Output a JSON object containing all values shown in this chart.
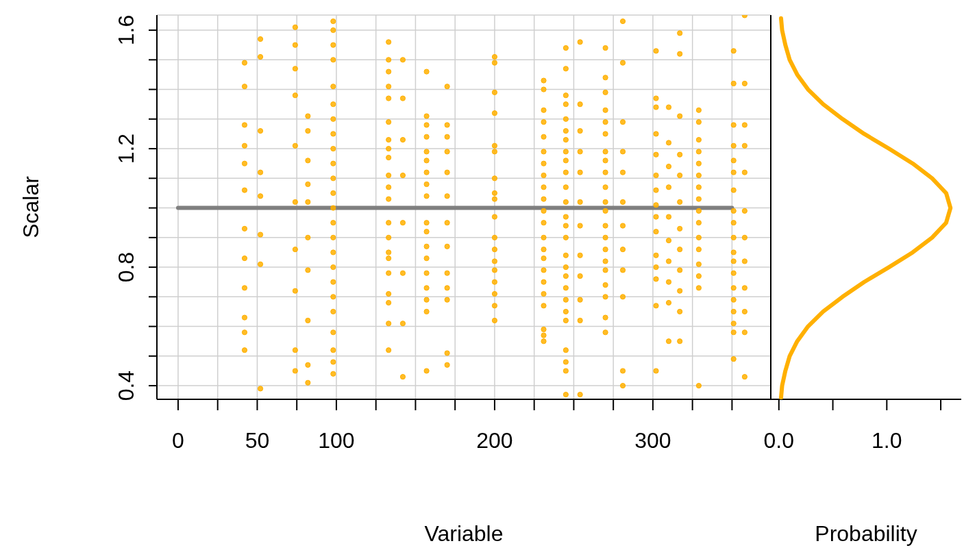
{
  "chart_data": [
    {
      "type": "scatter",
      "xlabel": "Variable",
      "ylabel": "Scalar",
      "xlim": [
        -13.4,
        374.5
      ],
      "ylim": [
        0.354,
        1.651
      ],
      "xticks": [
        0,
        {
          "value": 25,
          "label": null
        },
        50,
        {
          "value": 75,
          "label": null
        },
        100,
        {
          "value": 125,
          "label": null
        },
        {
          "value": 150,
          "label": null
        },
        {
          "value": 175,
          "label": null
        },
        200,
        {
          "value": 225,
          "label": null
        },
        {
          "value": 250,
          "label": null
        },
        {
          "value": 275,
          "label": null
        },
        300,
        {
          "value": 325,
          "label": null
        },
        {
          "value": 350,
          "label": null
        }
      ],
      "yticks": [
        0.4,
        {
          "value": 0.5,
          "label": null
        },
        {
          "value": 0.6,
          "label": null
        },
        {
          "value": 0.7,
          "label": null
        },
        0.8,
        {
          "value": 0.9,
          "label": null
        },
        {
          "value": 1.0,
          "label": null
        },
        {
          "value": 1.1,
          "label": null
        },
        1.2,
        {
          "value": 1.3,
          "label": null
        },
        {
          "value": 1.4,
          "label": null
        },
        {
          "value": 1.5,
          "label": null
        },
        1.6
      ],
      "grid": true,
      "marker": "circle",
      "series": [
        {
          "type": "line",
          "marker": "none",
          "color": "#7f7f7f",
          "x": [
            0,
            350
          ],
          "values": [
            1,
            1
          ]
        },
        {
          "color": "#ffb000",
          "x": [
            42,
            42,
            42,
            42,
            42,
            42,
            42,
            42,
            42,
            42,
            42,
            42
          ],
          "values": [
            1.49,
            1.41,
            1.28,
            1.21,
            1.15,
            1.06,
            0.93,
            0.83,
            0.73,
            0.63,
            0.58,
            0.52
          ]
        },
        {
          "color": "#ffb000",
          "x": [
            52,
            52,
            52,
            52,
            52,
            52,
            52,
            52
          ],
          "values": [
            1.57,
            1.51,
            1.26,
            1.12,
            1.04,
            0.91,
            0.81,
            0.39
          ]
        },
        {
          "color": "#ffb000",
          "x": [
            74,
            74,
            74,
            74,
            74,
            74,
            74,
            74,
            74,
            74
          ],
          "values": [
            1.61,
            1.55,
            1.47,
            1.38,
            1.21,
            1.02,
            0.86,
            0.72,
            0.52,
            0.45
          ]
        },
        {
          "color": "#ffb000",
          "x": [
            82,
            82,
            82,
            82,
            82,
            82,
            82,
            82,
            82,
            82
          ],
          "values": [
            1.31,
            1.26,
            1.16,
            1.08,
            1.02,
            0.9,
            0.79,
            0.62,
            0.47,
            0.41
          ]
        },
        {
          "color": "#ffb000",
          "x": [
            98,
            98,
            98,
            98,
            98,
            98,
            98,
            98,
            98,
            98,
            98,
            98,
            98,
            98,
            98,
            98,
            98,
            98,
            98,
            98,
            98,
            98,
            98,
            98
          ],
          "values": [
            1.63,
            1.6,
            1.55,
            1.5,
            1.41,
            1.35,
            1.3,
            1.25,
            1.2,
            1.15,
            1.1,
            1.05,
            1,
            0.95,
            0.9,
            0.85,
            0.8,
            0.75,
            0.7,
            0.65,
            0.58,
            0.52,
            0.48,
            0.44
          ]
        },
        {
          "color": "#ffb000",
          "x": [
            133,
            133,
            133,
            133,
            133,
            133,
            133,
            133,
            133,
            133,
            133,
            133,
            133,
            133,
            133,
            133,
            133,
            133,
            133,
            133,
            133
          ],
          "values": [
            1.56,
            1.5,
            1.46,
            1.41,
            1.37,
            1.29,
            1.23,
            1.2,
            1.17,
            1.11,
            1.07,
            1.03,
            0.95,
            0.9,
            0.85,
            0.83,
            0.78,
            0.71,
            0.68,
            0.61,
            0.52
          ]
        },
        {
          "color": "#ffb000",
          "x": [
            142,
            142,
            142,
            142,
            142,
            142,
            142,
            142
          ],
          "values": [
            1.5,
            1.37,
            1.23,
            1.11,
            0.95,
            0.78,
            0.61,
            0.43
          ]
        },
        {
          "color": "#ffb000",
          "x": [
            157,
            157,
            157,
            157,
            157,
            157,
            157,
            157,
            157,
            157,
            157,
            157,
            157,
            157,
            157,
            157,
            157,
            157
          ],
          "values": [
            1.46,
            1.31,
            1.28,
            1.24,
            1.19,
            1.16,
            1.12,
            1.08,
            1.04,
            0.95,
            0.92,
            0.87,
            0.83,
            0.78,
            0.73,
            0.69,
            0.65,
            0.45
          ]
        },
        {
          "color": "#ffb000",
          "x": [
            170,
            170,
            170,
            170,
            170,
            170,
            170,
            170,
            170,
            170,
            170,
            170,
            170
          ],
          "values": [
            1.41,
            1.28,
            1.24,
            1.19,
            1.12,
            1.04,
            0.95,
            0.87,
            0.78,
            0.73,
            0.69,
            0.51,
            0.47
          ]
        },
        {
          "color": "#ffb000",
          "x": [
            200,
            200,
            200,
            200,
            200,
            200,
            200,
            200,
            200,
            200,
            200,
            200,
            200,
            200,
            200,
            200,
            200,
            200
          ],
          "values": [
            1.51,
            1.49,
            1.39,
            1.32,
            1.21,
            1.19,
            1.1,
            1.05,
            1.03,
            0.97,
            0.9,
            0.86,
            0.82,
            0.79,
            0.75,
            0.71,
            0.67,
            0.62
          ]
        },
        {
          "color": "#ffb000",
          "x": [
            231,
            231,
            231,
            231,
            231,
            231,
            231,
            231,
            231,
            231,
            231,
            231,
            231,
            231,
            231,
            231,
            231,
            231,
            231,
            231,
            231,
            231
          ],
          "values": [
            1.43,
            1.4,
            1.33,
            1.29,
            1.24,
            1.19,
            1.15,
            1.11,
            1.07,
            1.03,
            0.99,
            0.95,
            0.9,
            0.86,
            0.83,
            0.79,
            0.75,
            0.71,
            0.67,
            0.59,
            0.57,
            0.55
          ]
        },
        {
          "color": "#ffb000",
          "x": [
            245,
            245,
            245,
            245,
            245,
            245,
            245,
            245,
            245,
            245,
            245,
            245,
            245,
            245,
            245,
            245,
            245,
            245,
            245,
            245,
            245,
            245,
            245,
            245,
            245,
            245
          ],
          "values": [
            1.54,
            1.47,
            1.38,
            1.35,
            1.3,
            1.26,
            1.23,
            1.19,
            1.16,
            1.12,
            1.07,
            1.02,
            0.97,
            0.94,
            0.9,
            0.84,
            0.8,
            0.77,
            0.73,
            0.69,
            0.65,
            0.62,
            0.52,
            0.48,
            0.45,
            0.37
          ]
        },
        {
          "color": "#ffb000",
          "x": [
            254,
            254,
            254,
            254,
            254,
            254,
            254,
            254,
            254,
            254,
            254,
            254
          ],
          "values": [
            1.56,
            1.35,
            1.26,
            1.19,
            1.12,
            1.02,
            0.94,
            0.84,
            0.77,
            0.69,
            0.62,
            0.37
          ]
        },
        {
          "color": "#ffb000",
          "x": [
            270,
            270,
            270,
            270,
            270,
            270,
            270,
            270,
            270,
            270,
            270,
            270,
            270,
            270,
            270,
            270,
            270,
            270,
            270,
            270,
            270
          ],
          "values": [
            1.54,
            1.44,
            1.39,
            1.33,
            1.29,
            1.25,
            1.19,
            1.16,
            1.12,
            1.07,
            1.02,
            0.99,
            0.94,
            0.9,
            0.86,
            0.82,
            0.79,
            0.74,
            0.7,
            0.63,
            0.58
          ]
        },
        {
          "color": "#ffb000",
          "x": [
            281,
            281,
            281,
            281,
            281,
            281,
            281,
            281,
            281,
            281,
            281,
            281
          ],
          "values": [
            1.63,
            1.49,
            1.29,
            1.19,
            1.12,
            1.02,
            0.94,
            0.86,
            0.79,
            0.7,
            0.45,
            0.4
          ]
        },
        {
          "color": "#ffb000",
          "x": [
            302,
            302,
            302,
            302,
            302,
            302,
            302,
            302,
            302,
            302,
            302,
            302,
            302,
            302,
            302
          ],
          "values": [
            1.53,
            1.37,
            1.34,
            1.25,
            1.18,
            1.11,
            1.06,
            1.01,
            0.97,
            0.92,
            0.84,
            0.8,
            0.76,
            0.67,
            0.45
          ]
        },
        {
          "color": "#ffb000",
          "x": [
            310,
            310,
            310,
            310,
            310,
            310,
            310,
            310,
            310,
            310
          ],
          "values": [
            1.34,
            1.22,
            1.14,
            1.07,
            0.97,
            0.89,
            0.82,
            0.75,
            0.68,
            0.55
          ]
        },
        {
          "color": "#ffb000",
          "x": [
            317,
            317,
            317,
            317,
            317,
            317,
            317,
            317,
            317,
            317,
            317,
            317
          ],
          "values": [
            1.59,
            1.52,
            1.31,
            1.18,
            1.11,
            1.02,
            0.93,
            0.86,
            0.79,
            0.72,
            0.65,
            0.55
          ]
        },
        {
          "color": "#ffb000",
          "x": [
            329,
            329,
            329,
            329,
            329,
            329,
            329,
            329,
            329,
            329,
            329,
            329,
            329,
            329,
            329,
            329
          ],
          "values": [
            1.33,
            1.29,
            1.23,
            1.19,
            1.15,
            1.11,
            1.07,
            1.03,
            0.99,
            0.95,
            0.9,
            0.86,
            0.81,
            0.77,
            0.73,
            0.4
          ]
        },
        {
          "color": "#ffb000",
          "x": [
            351,
            351,
            351,
            351,
            351,
            351,
            351,
            351,
            351,
            351,
            351,
            351,
            351,
            351,
            351,
            351,
            351,
            351,
            351
          ],
          "values": [
            1.53,
            1.42,
            1.28,
            1.21,
            1.16,
            1.12,
            1.06,
            0.99,
            0.95,
            0.9,
            0.85,
            0.82,
            0.78,
            0.73,
            0.69,
            0.65,
            0.61,
            0.58,
            0.49
          ]
        },
        {
          "color": "#ffb000",
          "x": [
            358,
            358,
            358,
            358,
            358,
            358,
            358,
            358,
            358,
            358,
            358,
            358
          ],
          "values": [
            1.65,
            1.42,
            1.28,
            1.21,
            1.12,
            0.99,
            0.9,
            0.82,
            0.73,
            0.65,
            0.58,
            0.43
          ]
        }
      ]
    },
    {
      "type": "line",
      "xlabel": "Probability",
      "xlim": [
        -0.075,
        1.69
      ],
      "ylim": [
        0.354,
        1.651
      ],
      "xticks": [
        {
          "value": 0,
          "label": "0.0"
        },
        {
          "value": 0.5,
          "label": null
        },
        {
          "value": 1,
          "label": "1.0"
        },
        {
          "value": 1.5,
          "label": null
        }
      ],
      "tick_labels": "x",
      "series": [
        {
          "color": "#ffb000",
          "x": [
            0.02,
            0.03,
            0.06,
            0.1,
            0.17,
            0.27,
            0.41,
            0.59,
            0.79,
            1.02,
            1.24,
            1.42,
            1.55,
            1.59,
            1.55,
            1.42,
            1.24,
            1.02,
            0.79,
            0.59,
            0.41,
            0.27,
            0.17,
            0.1,
            0.06,
            0.03,
            0.02
          ],
          "values": [
            0.36,
            0.4,
            0.45,
            0.5,
            0.55,
            0.6,
            0.65,
            0.7,
            0.75,
            0.8,
            0.85,
            0.9,
            0.95,
            1.0,
            1.05,
            1.1,
            1.15,
            1.2,
            1.25,
            1.3,
            1.35,
            1.4,
            1.45,
            1.5,
            1.55,
            1.6,
            1.64
          ]
        }
      ]
    }
  ]
}
